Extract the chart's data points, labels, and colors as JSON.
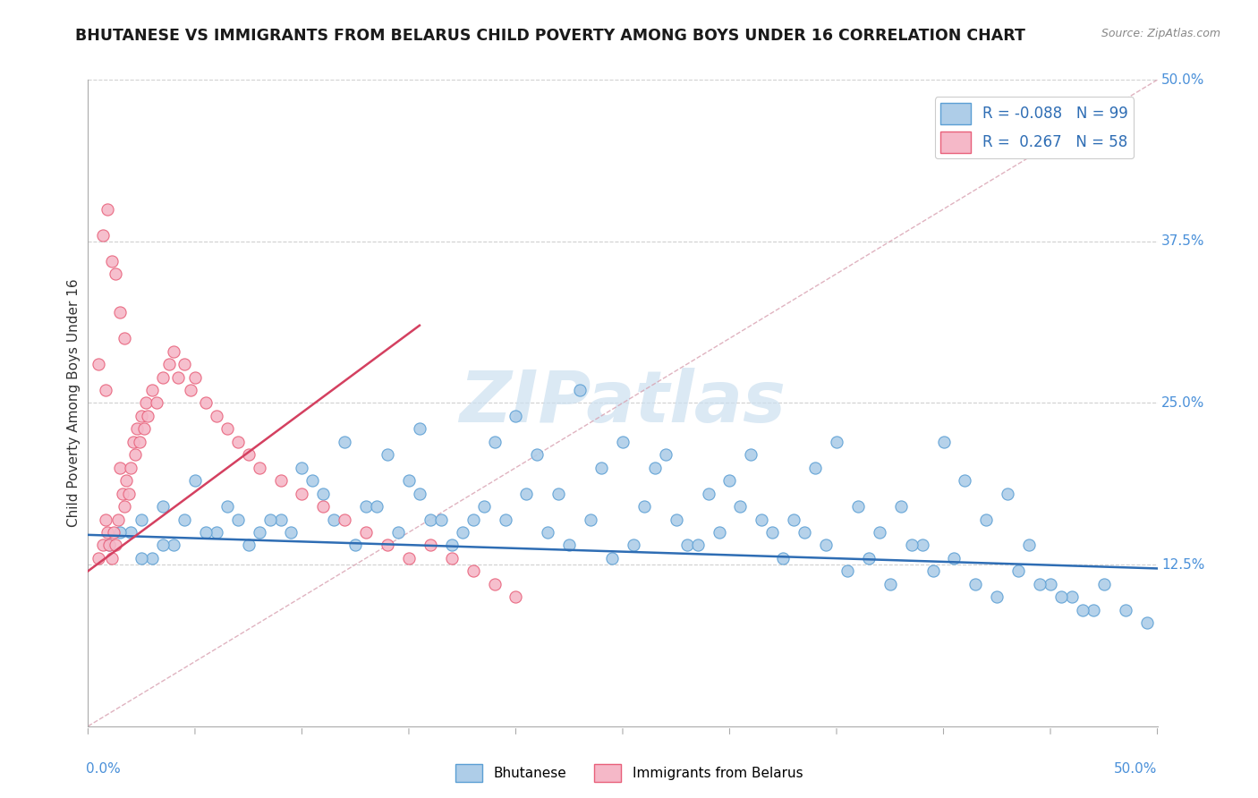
{
  "title": "BHUTANESE VS IMMIGRANTS FROM BELARUS CHILD POVERTY AMONG BOYS UNDER 16 CORRELATION CHART",
  "source": "Source: ZipAtlas.com",
  "ylabel": "Child Poverty Among Boys Under 16",
  "ytick_labels": [
    "12.5%",
    "25.0%",
    "37.5%",
    "50.0%"
  ],
  "ytick_values": [
    0.125,
    0.25,
    0.375,
    0.5
  ],
  "xlim": [
    0.0,
    0.5
  ],
  "ylim": [
    0.0,
    0.5
  ],
  "legend_blue_R": "-0.088",
  "legend_blue_N": "99",
  "legend_pink_R": "0.267",
  "legend_pink_N": "58",
  "blue_color": "#aecde8",
  "pink_color": "#f5b8c8",
  "blue_edge": "#5b9fd4",
  "pink_edge": "#e8607a",
  "blue_trend_color": "#2e6db4",
  "pink_trend_color": "#d44060",
  "ref_line_color": "#d8a0b0",
  "watermark_color": "#cce0f0",
  "watermark_text": "ZIPatlas",
  "blue_x": [
    0.01,
    0.02,
    0.025,
    0.03,
    0.035,
    0.04,
    0.05,
    0.06,
    0.07,
    0.08,
    0.09,
    0.1,
    0.11,
    0.12,
    0.13,
    0.14,
    0.15,
    0.155,
    0.16,
    0.17,
    0.18,
    0.19,
    0.2,
    0.21,
    0.22,
    0.23,
    0.24,
    0.25,
    0.26,
    0.27,
    0.28,
    0.29,
    0.3,
    0.31,
    0.32,
    0.33,
    0.34,
    0.35,
    0.36,
    0.37,
    0.38,
    0.39,
    0.4,
    0.41,
    0.42,
    0.43,
    0.44,
    0.45,
    0.46,
    0.47,
    0.015,
    0.025,
    0.035,
    0.045,
    0.055,
    0.065,
    0.075,
    0.085,
    0.095,
    0.105,
    0.115,
    0.125,
    0.135,
    0.145,
    0.155,
    0.165,
    0.175,
    0.185,
    0.195,
    0.205,
    0.215,
    0.225,
    0.235,
    0.245,
    0.255,
    0.265,
    0.275,
    0.285,
    0.295,
    0.305,
    0.315,
    0.325,
    0.335,
    0.345,
    0.355,
    0.365,
    0.375,
    0.385,
    0.395,
    0.405,
    0.415,
    0.425,
    0.435,
    0.445,
    0.455,
    0.465,
    0.475,
    0.485,
    0.495
  ],
  "blue_y": [
    0.14,
    0.15,
    0.16,
    0.13,
    0.17,
    0.14,
    0.19,
    0.15,
    0.16,
    0.15,
    0.16,
    0.2,
    0.18,
    0.22,
    0.17,
    0.21,
    0.19,
    0.23,
    0.16,
    0.14,
    0.16,
    0.22,
    0.24,
    0.21,
    0.18,
    0.26,
    0.2,
    0.22,
    0.17,
    0.21,
    0.14,
    0.18,
    0.19,
    0.21,
    0.15,
    0.16,
    0.2,
    0.22,
    0.17,
    0.15,
    0.17,
    0.14,
    0.22,
    0.19,
    0.16,
    0.18,
    0.14,
    0.11,
    0.1,
    0.09,
    0.15,
    0.13,
    0.14,
    0.16,
    0.15,
    0.17,
    0.14,
    0.16,
    0.15,
    0.19,
    0.16,
    0.14,
    0.17,
    0.15,
    0.18,
    0.16,
    0.15,
    0.17,
    0.16,
    0.18,
    0.15,
    0.14,
    0.16,
    0.13,
    0.14,
    0.2,
    0.16,
    0.14,
    0.15,
    0.17,
    0.16,
    0.13,
    0.15,
    0.14,
    0.12,
    0.13,
    0.11,
    0.14,
    0.12,
    0.13,
    0.11,
    0.1,
    0.12,
    0.11,
    0.1,
    0.09,
    0.11,
    0.09,
    0.08
  ],
  "pink_x": [
    0.005,
    0.007,
    0.008,
    0.009,
    0.01,
    0.011,
    0.012,
    0.013,
    0.014,
    0.015,
    0.016,
    0.017,
    0.018,
    0.019,
    0.02,
    0.021,
    0.022,
    0.023,
    0.024,
    0.025,
    0.026,
    0.027,
    0.028,
    0.03,
    0.032,
    0.035,
    0.038,
    0.04,
    0.042,
    0.045,
    0.048,
    0.05,
    0.055,
    0.06,
    0.065,
    0.07,
    0.075,
    0.08,
    0.09,
    0.1,
    0.11,
    0.12,
    0.13,
    0.14,
    0.15,
    0.16,
    0.17,
    0.18,
    0.19,
    0.2,
    0.007,
    0.009,
    0.011,
    0.013,
    0.015,
    0.017,
    0.005,
    0.008
  ],
  "pink_y": [
    0.13,
    0.14,
    0.16,
    0.15,
    0.14,
    0.13,
    0.15,
    0.14,
    0.16,
    0.2,
    0.18,
    0.17,
    0.19,
    0.18,
    0.2,
    0.22,
    0.21,
    0.23,
    0.22,
    0.24,
    0.23,
    0.25,
    0.24,
    0.26,
    0.25,
    0.27,
    0.28,
    0.29,
    0.27,
    0.28,
    0.26,
    0.27,
    0.25,
    0.24,
    0.23,
    0.22,
    0.21,
    0.2,
    0.19,
    0.18,
    0.17,
    0.16,
    0.15,
    0.14,
    0.13,
    0.14,
    0.13,
    0.12,
    0.11,
    0.1,
    0.38,
    0.4,
    0.36,
    0.35,
    0.32,
    0.3,
    0.28,
    0.26
  ]
}
